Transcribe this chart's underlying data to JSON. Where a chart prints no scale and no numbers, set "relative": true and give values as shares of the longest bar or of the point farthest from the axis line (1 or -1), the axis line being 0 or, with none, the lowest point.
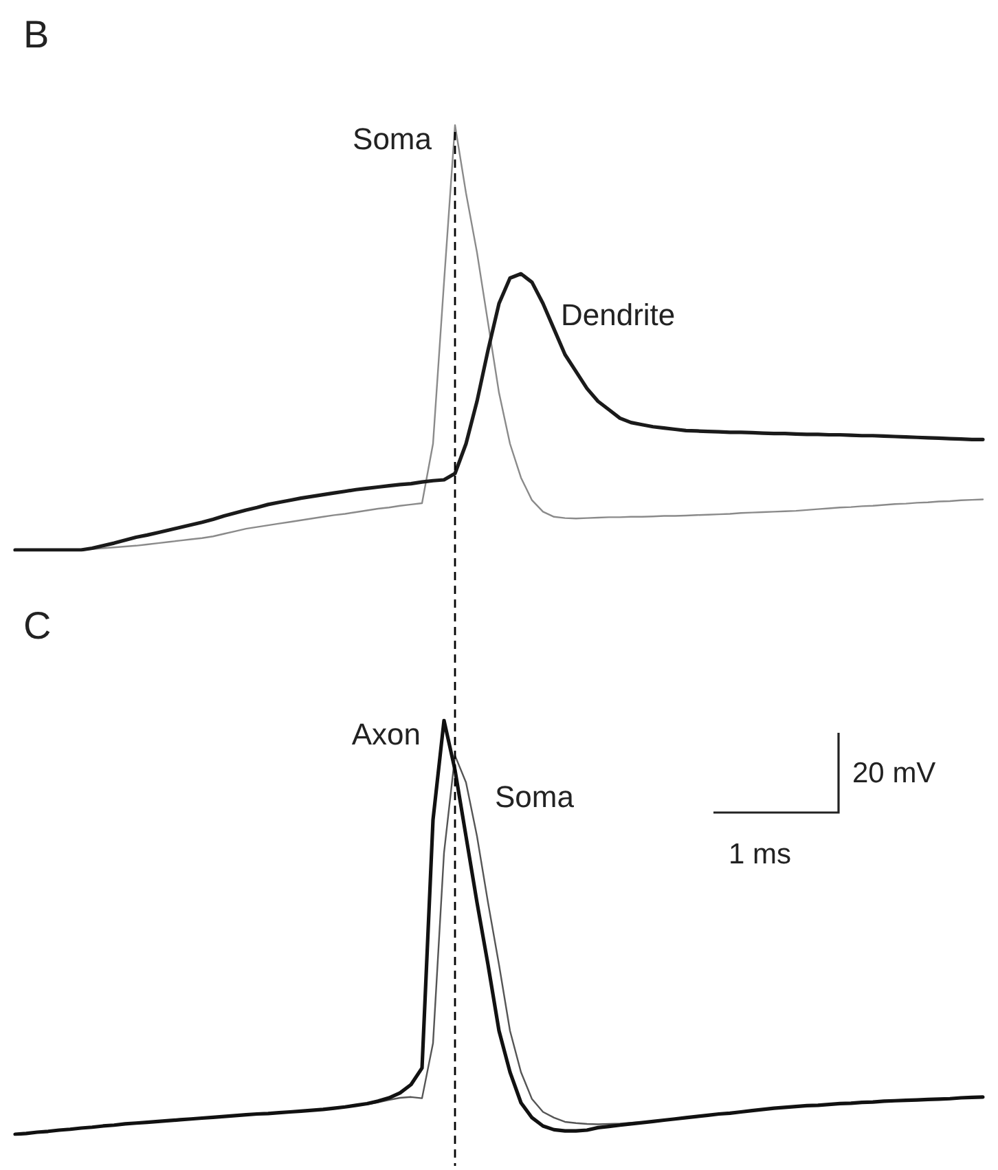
{
  "chart_data": [
    {
      "type": "line",
      "title": "B",
      "relative": true,
      "marker": "none",
      "categories": [
        null,
        null,
        null,
        null,
        null,
        null,
        null,
        null,
        null,
        null,
        null,
        null,
        null,
        null,
        null,
        null,
        null,
        null,
        null,
        null,
        null,
        null,
        null,
        null,
        null,
        null,
        null,
        null,
        null,
        null,
        null,
        null,
        null,
        null,
        null,
        null,
        null,
        null,
        null,
        null,
        null,
        null,
        null,
        null,
        null,
        null,
        null,
        null,
        null,
        null,
        null,
        null,
        null,
        null,
        null,
        null,
        null,
        null,
        null,
        null,
        null,
        null,
        null,
        null,
        null,
        null,
        null,
        null,
        null,
        null,
        null,
        null,
        null,
        null,
        null,
        null,
        null,
        null,
        null,
        null,
        null,
        null,
        null,
        null,
        null,
        null,
        null,
        null,
        null
      ],
      "series": [
        {
          "name": "Soma",
          "color": "#8a8a8a",
          "values": [
            0,
            0,
            0,
            0,
            0,
            0,
            0,
            0.002,
            0.004,
            0.006,
            0.008,
            0.01,
            0.013,
            0.016,
            0.019,
            0.022,
            0.025,
            0.028,
            0.032,
            0.038,
            0.044,
            0.05,
            0.054,
            0.058,
            0.062,
            0.066,
            0.07,
            0.074,
            0.078,
            0.082,
            0.085,
            0.089,
            0.093,
            0.097,
            0.1,
            0.104,
            0.107,
            0.11,
            0.25,
            0.63,
            1,
            0.84,
            0.7,
            0.535,
            0.37,
            0.25,
            0.17,
            0.117,
            0.09,
            0.078,
            0.075,
            0.074,
            0.075,
            0.076,
            0.077,
            0.077,
            0.078,
            0.078,
            0.079,
            0.08,
            0.08,
            0.081,
            0.082,
            0.083,
            0.084,
            0.085,
            0.087,
            0.088,
            0.089,
            0.09,
            0.091,
            0.092,
            0.094,
            0.096,
            0.098,
            0.1,
            0.101,
            0.103,
            0.104,
            0.106,
            0.108,
            0.109,
            0.111,
            0.112,
            0.114,
            0.115,
            0.117,
            0.118,
            0.119
          ]
        },
        {
          "name": "Dendrite",
          "color": "#1a1a1a",
          "values": [
            0,
            0,
            0,
            0,
            0,
            0,
            0,
            0.004,
            0.01,
            0.016,
            0.023,
            0.03,
            0.035,
            0.041,
            0.047,
            0.053,
            0.059,
            0.065,
            0.072,
            0.08,
            0.087,
            0.094,
            0.1,
            0.107,
            0.112,
            0.117,
            0.122,
            0.126,
            0.13,
            0.134,
            0.138,
            0.142,
            0.145,
            0.148,
            0.151,
            0.154,
            0.156,
            0.16,
            0.163,
            0.165,
            0.18,
            0.25,
            0.35,
            0.47,
            0.58,
            0.64,
            0.65,
            0.63,
            0.58,
            0.52,
            0.46,
            0.42,
            0.38,
            0.35,
            0.33,
            0.31,
            0.3,
            0.295,
            0.29,
            0.287,
            0.284,
            0.281,
            0.28,
            0.279,
            0.278,
            0.277,
            0.277,
            0.276,
            0.275,
            0.274,
            0.274,
            0.273,
            0.272,
            0.272,
            0.271,
            0.271,
            0.27,
            0.269,
            0.269,
            0.268,
            0.267,
            0.266,
            0.265,
            0.264,
            0.263,
            0.262,
            0.261,
            0.26,
            0.26
          ]
        }
      ]
    },
    {
      "type": "line",
      "title": "C",
      "relative": true,
      "marker": "none",
      "categories": [
        null,
        null,
        null,
        null,
        null,
        null,
        null,
        null,
        null,
        null,
        null,
        null,
        null,
        null,
        null,
        null,
        null,
        null,
        null,
        null,
        null,
        null,
        null,
        null,
        null,
        null,
        null,
        null,
        null,
        null,
        null,
        null,
        null,
        null,
        null,
        null,
        null,
        null,
        null,
        null,
        null,
        null,
        null,
        null,
        null,
        null,
        null,
        null,
        null,
        null,
        null,
        null,
        null,
        null,
        null,
        null,
        null,
        null,
        null,
        null,
        null,
        null,
        null,
        null,
        null,
        null,
        null,
        null,
        null,
        null,
        null,
        null,
        null,
        null,
        null,
        null,
        null,
        null,
        null,
        null,
        null,
        null,
        null,
        null,
        null,
        null,
        null,
        null,
        null
      ],
      "annotations": [
        "20 mV",
        "1 ms"
      ],
      "series": [
        {
          "name": "Axon",
          "color": "#111111",
          "values": [
            0,
            0.002,
            0.005,
            0.007,
            0.01,
            0.012,
            0.015,
            0.017,
            0.02,
            0.022,
            0.025,
            0.027,
            0.029,
            0.031,
            0.033,
            0.035,
            0.037,
            0.039,
            0.041,
            0.043,
            0.045,
            0.047,
            0.049,
            0.05,
            0.052,
            0.054,
            0.056,
            0.058,
            0.06,
            0.063,
            0.066,
            0.07,
            0.074,
            0.08,
            0.088,
            0.1,
            0.12,
            0.16,
            0.76,
            1,
            0.88,
            0.72,
            0.56,
            0.41,
            0.25,
            0.15,
            0.076,
            0.04,
            0.02,
            0.011,
            0.008,
            0.008,
            0.01,
            0.016,
            0.019,
            0.022,
            0.025,
            0.028,
            0.031,
            0.034,
            0.037,
            0.04,
            0.043,
            0.046,
            0.049,
            0.051,
            0.054,
            0.057,
            0.06,
            0.063,
            0.065,
            0.067,
            0.069,
            0.07,
            0.072,
            0.074,
            0.075,
            0.077,
            0.078,
            0.08,
            0.081,
            0.082,
            0.083,
            0.084,
            0.085,
            0.086,
            0.088,
            0.089,
            0.09
          ]
        },
        {
          "name": "Soma",
          "color": "#555555",
          "values": [
            0,
            0.002,
            0.005,
            0.007,
            0.01,
            0.012,
            0.015,
            0.017,
            0.02,
            0.022,
            0.025,
            0.027,
            0.029,
            0.031,
            0.033,
            0.035,
            0.037,
            0.039,
            0.041,
            0.043,
            0.045,
            0.047,
            0.049,
            0.05,
            0.052,
            0.054,
            0.056,
            0.058,
            0.06,
            0.063,
            0.066,
            0.07,
            0.072,
            0.077,
            0.083,
            0.088,
            0.09,
            0.087,
            0.22,
            0.68,
            0.915,
            0.85,
            0.72,
            0.56,
            0.41,
            0.25,
            0.15,
            0.085,
            0.054,
            0.04,
            0.03,
            0.027,
            0.025,
            0.024,
            0.025,
            0.026,
            0.028,
            0.029,
            0.031,
            0.034,
            0.037,
            0.04,
            0.043,
            0.046,
            0.049,
            0.051,
            0.054,
            0.057,
            0.06,
            0.063,
            0.065,
            0.067,
            0.069,
            0.07,
            0.072,
            0.074,
            0.075,
            0.077,
            0.078,
            0.08,
            0.081,
            0.082,
            0.083,
            0.084,
            0.085,
            0.086,
            0.088,
            0.089,
            0.09
          ]
        }
      ]
    }
  ]
}
